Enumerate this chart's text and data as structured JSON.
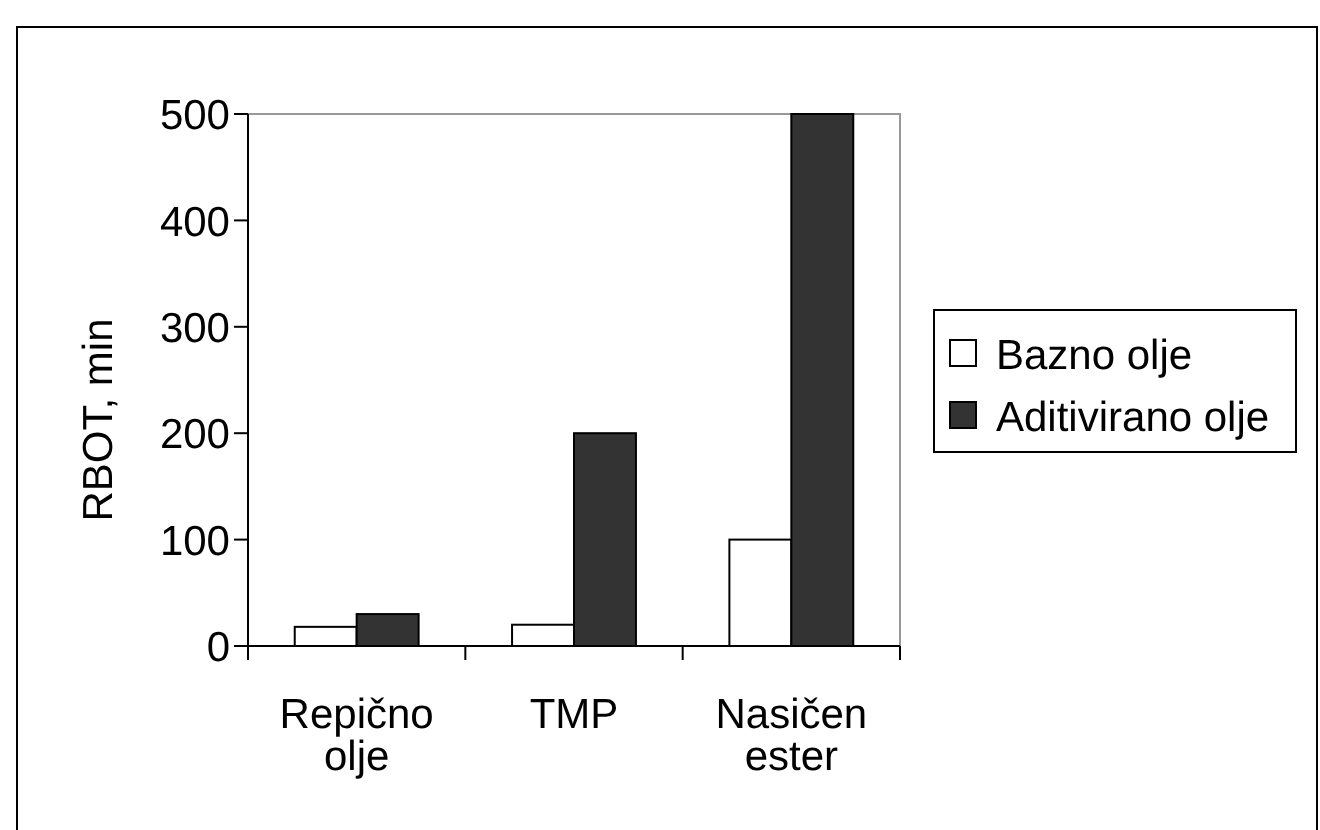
{
  "chart_data": {
    "type": "bar",
    "ylabel": "RBOT, min",
    "categories": [
      "Repično olje",
      "TMP",
      "Nasičen ester"
    ],
    "series": [
      {
        "name": "Bazno olje",
        "color": "#ffffff",
        "values": [
          18,
          20,
          100
        ]
      },
      {
        "name": "Aditivirano olje",
        "color": "#333333",
        "values": [
          30,
          200,
          500
        ]
      }
    ],
    "ylim": [
      0,
      500
    ],
    "yticks": [
      0,
      100,
      200,
      300,
      400,
      500
    ],
    "legend": "right"
  }
}
